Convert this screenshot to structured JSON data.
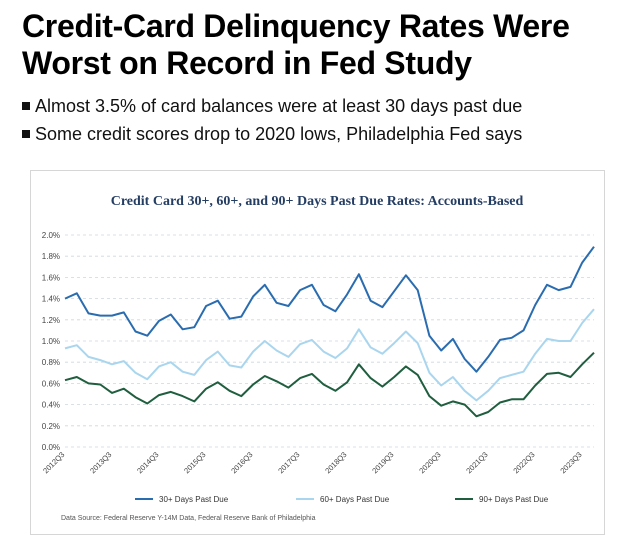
{
  "headline": {
    "line1": "Credit-Card Delinquency Rates Were",
    "line2": "Worst on Record in Fed Study"
  },
  "bullets": [
    "Almost 3.5% of card balances were at least 30 days past due",
    "Some credit scores drop to 2020 lows, Philadelphia Fed says"
  ],
  "chart_data": {
    "type": "line",
    "title": "Credit Card 30+, 60+, and 90+ Days Past Due Rates: Accounts-Based",
    "xlabel": "",
    "ylabel": "",
    "ylim": [
      0,
      2.0
    ],
    "yticks": [
      "0.0%",
      "0.2%",
      "0.4%",
      "0.6%",
      "0.8%",
      "1.0%",
      "1.2%",
      "1.4%",
      "1.6%",
      "1.8%",
      "2.0%"
    ],
    "grid": "horizontal dashed",
    "legend_position": "bottom",
    "x": [
      "2012Q3",
      "2012Q4",
      "2013Q1",
      "2013Q2",
      "2013Q3",
      "2013Q4",
      "2014Q1",
      "2014Q2",
      "2014Q3",
      "2014Q4",
      "2015Q1",
      "2015Q2",
      "2015Q3",
      "2015Q4",
      "2016Q1",
      "2016Q2",
      "2016Q3",
      "2016Q4",
      "2017Q1",
      "2017Q2",
      "2017Q3",
      "2017Q4",
      "2018Q1",
      "2018Q2",
      "2018Q3",
      "2018Q4",
      "2019Q1",
      "2019Q2",
      "2019Q3",
      "2019Q4",
      "2020Q1",
      "2020Q2",
      "2020Q3",
      "2020Q4",
      "2021Q1",
      "2021Q2",
      "2021Q3",
      "2021Q4",
      "2022Q1",
      "2022Q2",
      "2022Q3",
      "2022Q4",
      "2023Q1",
      "2023Q2",
      "2023Q3",
      "2023Q4"
    ],
    "xtick_labels": [
      "2012Q3",
      "2013Q3",
      "2014Q3",
      "2015Q3",
      "2016Q3",
      "2017Q3",
      "2018Q3",
      "2019Q3",
      "2020Q3",
      "2021Q3",
      "2022Q3",
      "2023Q3"
    ],
    "series": [
      {
        "name": "30+ Days Past Due",
        "color": "#2a6cb0",
        "values": [
          1.4,
          1.45,
          1.26,
          1.24,
          1.24,
          1.27,
          1.09,
          1.05,
          1.19,
          1.25,
          1.11,
          1.13,
          1.33,
          1.38,
          1.21,
          1.23,
          1.42,
          1.53,
          1.36,
          1.33,
          1.48,
          1.53,
          1.34,
          1.28,
          1.44,
          1.63,
          1.38,
          1.32,
          1.47,
          1.62,
          1.48,
          1.05,
          0.91,
          1.02,
          0.83,
          0.71,
          0.85,
          1.01,
          1.03,
          1.1,
          1.34,
          1.53,
          1.48,
          1.51,
          1.74,
          1.89
        ]
      },
      {
        "name": "60+ Days Past Due",
        "color": "#a9d6ee",
        "values": [
          0.93,
          0.96,
          0.85,
          0.82,
          0.78,
          0.81,
          0.7,
          0.64,
          0.76,
          0.8,
          0.71,
          0.68,
          0.82,
          0.9,
          0.77,
          0.75,
          0.9,
          1.0,
          0.91,
          0.85,
          0.97,
          1.01,
          0.9,
          0.84,
          0.93,
          1.11,
          0.94,
          0.88,
          0.98,
          1.09,
          0.98,
          0.7,
          0.58,
          0.66,
          0.53,
          0.44,
          0.53,
          0.65,
          0.68,
          0.71,
          0.88,
          1.02,
          1.0,
          1.0,
          1.17,
          1.3
        ]
      },
      {
        "name": "90+ Days Past Due",
        "color": "#1f5e3e",
        "values": [
          0.63,
          0.66,
          0.6,
          0.59,
          0.51,
          0.55,
          0.47,
          0.41,
          0.49,
          0.52,
          0.48,
          0.43,
          0.55,
          0.61,
          0.53,
          0.48,
          0.59,
          0.67,
          0.62,
          0.56,
          0.65,
          0.69,
          0.59,
          0.53,
          0.61,
          0.78,
          0.65,
          0.57,
          0.66,
          0.76,
          0.68,
          0.48,
          0.39,
          0.43,
          0.4,
          0.29,
          0.33,
          0.42,
          0.45,
          0.45,
          0.58,
          0.69,
          0.7,
          0.66,
          0.78,
          0.89
        ]
      }
    ],
    "source": "Data Source: Federal Reserve Y-14M Data, Federal Reserve Bank of Philadelphia"
  }
}
